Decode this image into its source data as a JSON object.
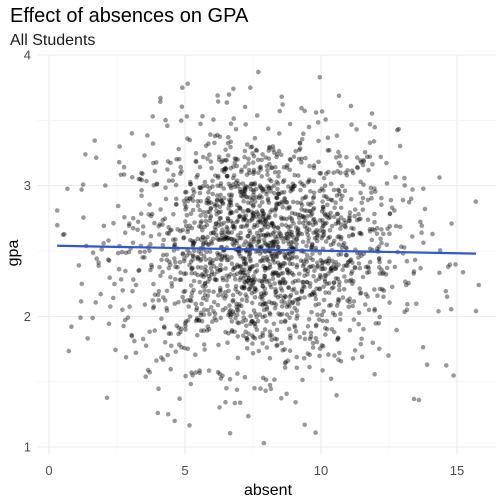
{
  "chart_data": {
    "type": "scatter",
    "title": "Effect of absences on GPA",
    "subtitle": "All Students",
    "xlabel": "absent",
    "ylabel": "gpa",
    "xlim": [
      0,
      16
    ],
    "ylim": [
      1,
      4
    ],
    "x_ticks": [
      0,
      5,
      10,
      15
    ],
    "y_ticks": [
      1,
      2,
      3,
      4
    ],
    "grid": true,
    "point_color": "#000000",
    "point_alpha": 0.4,
    "n_points_approx": 2000,
    "point_distribution": {
      "x_mean": 7.8,
      "x_sd": 2.5,
      "y_mean": 2.52,
      "y_sd": 0.45
    },
    "notable_points": [
      {
        "x": 0.3,
        "y": 2.81
      },
      {
        "x": 1.2,
        "y": 2.97
      },
      {
        "x": 1.1,
        "y": 2.39
      },
      {
        "x": 1.9,
        "y": 2.17
      },
      {
        "x": 2.8,
        "y": 2.64
      },
      {
        "x": 3.0,
        "y": 2.52
      },
      {
        "x": 2.6,
        "y": 3.3
      },
      {
        "x": 4.1,
        "y": 3.67
      },
      {
        "x": 4.9,
        "y": 3.75
      },
      {
        "x": 5.1,
        "y": 3.78
      },
      {
        "x": 7.7,
        "y": 3.87
      },
      {
        "x": 7.4,
        "y": 3.75
      },
      {
        "x": 6.2,
        "y": 3.69
      },
      {
        "x": 11.8,
        "y": 3.47
      },
      {
        "x": 11.1,
        "y": 3.61
      },
      {
        "x": 12.2,
        "y": 3.22
      },
      {
        "x": 12.7,
        "y": 2.81
      },
      {
        "x": 13.7,
        "y": 2.64
      },
      {
        "x": 14.1,
        "y": 2.63
      },
      {
        "x": 14.8,
        "y": 2.71
      },
      {
        "x": 15.8,
        "y": 2.24
      },
      {
        "x": 15.7,
        "y": 2.04
      },
      {
        "x": 13.9,
        "y": 1.63
      },
      {
        "x": 13.6,
        "y": 1.36
      },
      {
        "x": 4.0,
        "y": 1.26
      },
      {
        "x": 4.8,
        "y": 1.37
      },
      {
        "x": 7.9,
        "y": 1.03
      },
      {
        "x": 9.8,
        "y": 1.11
      },
      {
        "x": 9.4,
        "y": 1.17
      },
      {
        "x": 2.9,
        "y": 1.99
      },
      {
        "x": 2.7,
        "y": 2.05
      }
    ],
    "trend_line": {
      "method": "lm",
      "color": "#2d57d4",
      "x": [
        0.3,
        15.7
      ],
      "y": [
        2.54,
        2.48
      ]
    }
  }
}
